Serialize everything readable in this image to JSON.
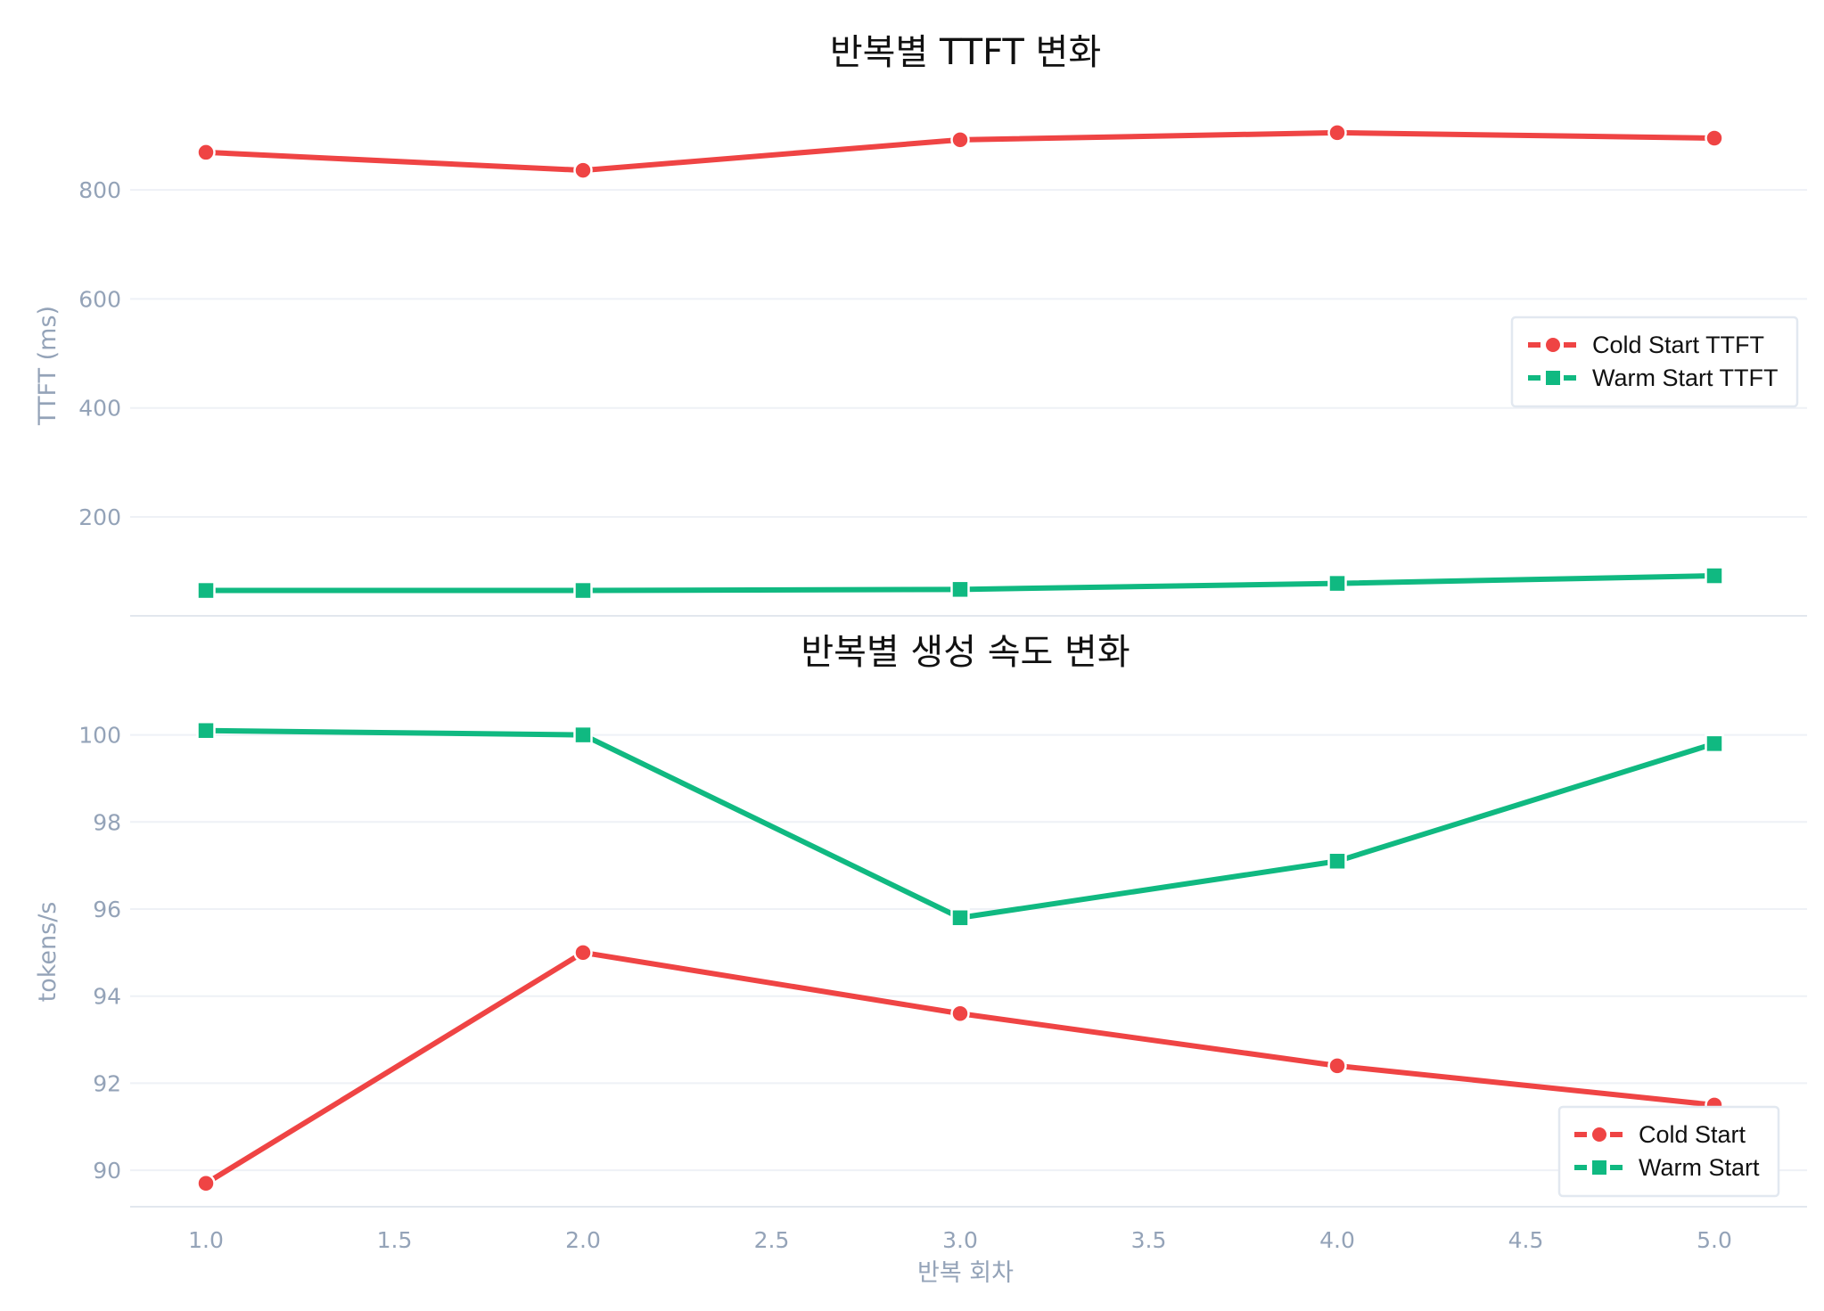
{
  "colors": {
    "cold": "#ef4444",
    "warm": "#10b981",
    "tick": "#94a3b8",
    "grid": "#eef1f6",
    "legend_border": "#e2e8f0"
  },
  "chart_data": [
    {
      "type": "line",
      "title": "반복별 TTFT 변화",
      "xlabel": "",
      "ylabel": "TTFT (ms)",
      "x": [
        1,
        2,
        3,
        4,
        5
      ],
      "yticks": [
        200,
        400,
        600,
        800
      ],
      "ylim": [
        20,
        960
      ],
      "grid": true,
      "legend_position": "right-middle",
      "series": [
        {
          "name": "Cold Start TTFT",
          "marker": "circle",
          "color": "#ef4444",
          "values": [
            869,
            836,
            892,
            905,
            895
          ]
        },
        {
          "name": "Warm Start TTFT",
          "marker": "square",
          "color": "#10b981",
          "values": [
            65,
            65,
            67,
            78,
            92
          ]
        }
      ]
    },
    {
      "type": "line",
      "title": "반복별 생성 속도 변화",
      "xlabel": "반복 회차",
      "ylabel": "tokens/s",
      "x": [
        1,
        2,
        3,
        4,
        5
      ],
      "xticks": [
        "1.0",
        "1.5",
        "2.0",
        "2.5",
        "3.0",
        "3.5",
        "4.0",
        "4.5",
        "5.0"
      ],
      "yticks": [
        90,
        92,
        94,
        96,
        98,
        100
      ],
      "ylim": [
        89.2,
        101.0
      ],
      "grid": true,
      "legend_position": "bottom-right",
      "series": [
        {
          "name": "Cold Start",
          "marker": "circle",
          "color": "#ef4444",
          "values": [
            89.7,
            95.0,
            93.6,
            92.4,
            91.5
          ]
        },
        {
          "name": "Warm Start",
          "marker": "square",
          "color": "#10b981",
          "values": [
            100.1,
            100.0,
            95.8,
            97.1,
            99.8
          ]
        }
      ]
    }
  ]
}
